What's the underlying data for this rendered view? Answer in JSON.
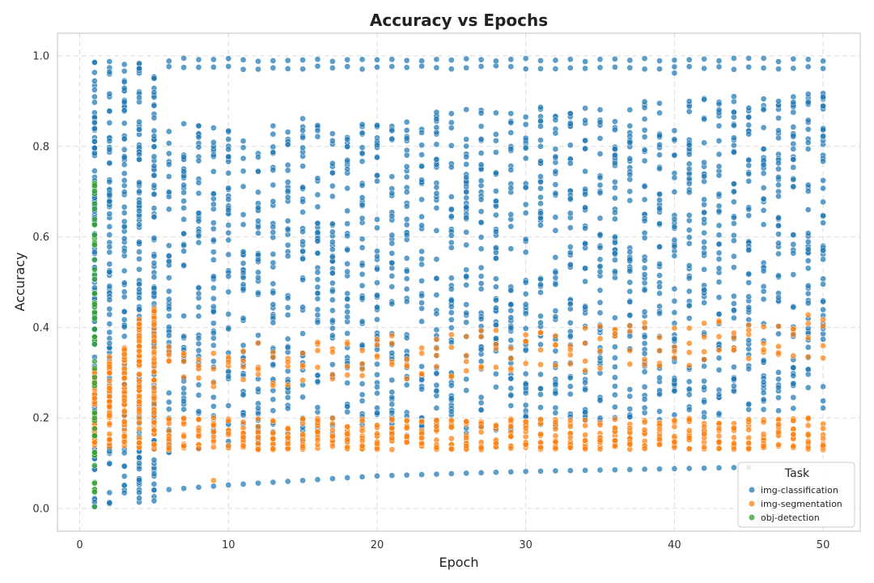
{
  "chart_data": {
    "type": "scatter",
    "title": "Accuracy vs Epochs",
    "xlabel": "Epoch",
    "ylabel": "Accuracy",
    "xlim": [
      -1.5,
      52.5
    ],
    "ylim": [
      -0.05,
      1.05
    ],
    "xticks": [
      "0",
      "10",
      "20",
      "30",
      "40",
      "50"
    ],
    "yticks": [
      "0.0",
      "0.2",
      "0.4",
      "0.6",
      "0.8",
      "1.0"
    ],
    "grid": true,
    "legend": {
      "title": "Task",
      "placement": "bottom-right"
    },
    "series": [
      {
        "name": "img-classification",
        "color": "#1f77b4",
        "pattern": {
          "dense": [
            {
              "x": 1,
              "lo": 0.0,
              "hi": 0.99,
              "n": 110
            },
            {
              "x": 2,
              "lo": 0.005,
              "hi": 0.99,
              "n": 90
            },
            {
              "x": 3,
              "lo": 0.01,
              "hi": 0.99,
              "n": 80
            },
            {
              "x": 4,
              "lo": 0.01,
              "hi": 0.99,
              "n": 100
            },
            {
              "x": 5,
              "lo": 0.01,
              "hi": 0.99,
              "n": 100
            }
          ],
          "top_band": {
            "lo": 0.97,
            "hi": 0.995,
            "x_from": 6,
            "x_to": 50
          },
          "body_band": {
            "lo_start": 0.12,
            "lo_end": 0.22,
            "hi_start": 0.85,
            "hi_end": 0.92,
            "x_from": 6,
            "x_to": 50,
            "n": 42
          },
          "floor_curve": [
            {
              "x": 6,
              "y": 0.042
            },
            {
              "x": 10,
              "y": 0.052
            },
            {
              "x": 20,
              "y": 0.072
            },
            {
              "x": 30,
              "y": 0.082
            },
            {
              "x": 40,
              "y": 0.088
            },
            {
              "x": 50,
              "y": 0.094
            }
          ],
          "outliers": [
            {
              "x": 40,
              "y": 0.962
            }
          ]
        }
      },
      {
        "name": "img-segmentation",
        "color": "#ff7f0e",
        "pattern": {
          "dense": [
            {
              "x": 1,
              "lo": 0.13,
              "hi": 0.31,
              "n": 45
            },
            {
              "x": 2,
              "lo": 0.13,
              "hi": 0.34,
              "n": 50
            },
            {
              "x": 3,
              "lo": 0.13,
              "hi": 0.36,
              "n": 50
            },
            {
              "x": 4,
              "lo": 0.13,
              "hi": 0.42,
              "n": 60
            },
            {
              "x": 5,
              "lo": 0.13,
              "hi": 0.45,
              "n": 60
            }
          ],
          "low_band": {
            "lo": 0.13,
            "hi": 0.2,
            "x_from": 6,
            "x_to": 50,
            "n": 12
          },
          "upper_band": {
            "lo_start": 0.26,
            "lo_end": 0.33,
            "hi_start": 0.36,
            "hi_end": 0.43,
            "x_from": 6,
            "x_to": 50,
            "n": 4
          },
          "outliers": [
            {
              "x": 9,
              "y": 0.062
            },
            {
              "x": 6,
              "y": 0.326
            }
          ]
        }
      },
      {
        "name": "obj-detection",
        "color": "#2ca02c",
        "pattern": {
          "dense": [
            {
              "x": 1,
              "lo": 0.0,
              "hi": 0.72,
              "n": 60
            }
          ]
        }
      }
    ]
  }
}
